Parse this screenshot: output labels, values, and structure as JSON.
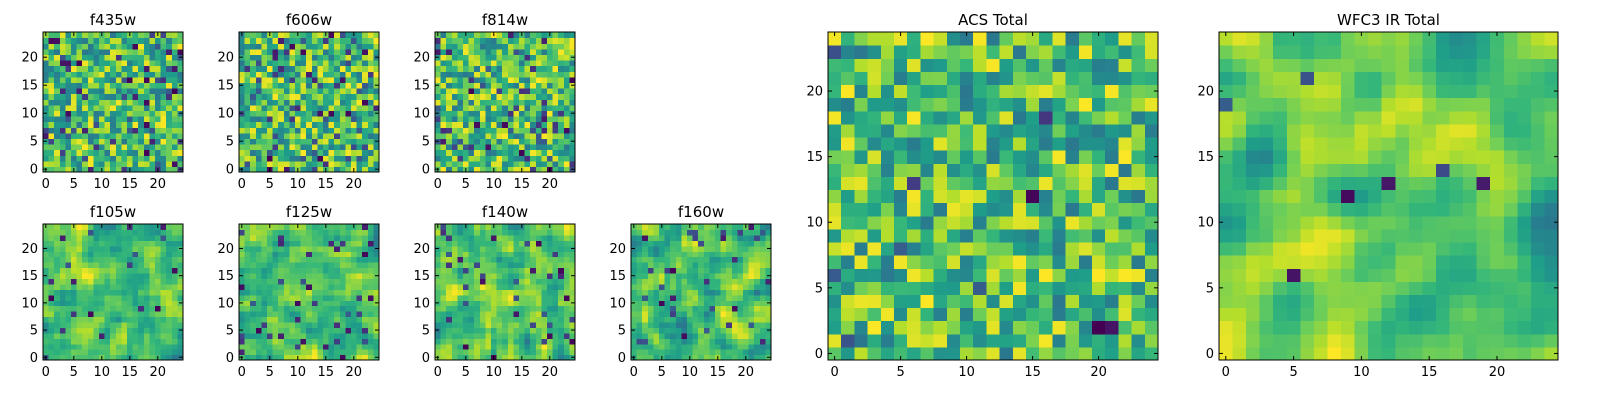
{
  "chart_data": [
    {
      "type": "heatmap",
      "title": "f435w",
      "x_ticks": [
        0,
        5,
        10,
        15,
        20
      ],
      "y_ticks": [
        0,
        5,
        10,
        15,
        20
      ],
      "xlim": [
        -0.5,
        24.5
      ],
      "ylim": [
        -0.5,
        24.5
      ],
      "grid_size": [
        25,
        25
      ],
      "colormap": "viridis",
      "seed": 11,
      "smooth": 0,
      "dark_prob": 0.1,
      "grid": false
    },
    {
      "type": "heatmap",
      "title": "f606w",
      "x_ticks": [
        0,
        5,
        10,
        15,
        20
      ],
      "y_ticks": [
        0,
        5,
        10,
        15,
        20
      ],
      "xlim": [
        -0.5,
        24.5
      ],
      "ylim": [
        -0.5,
        24.5
      ],
      "grid_size": [
        25,
        25
      ],
      "colormap": "viridis",
      "seed": 23,
      "smooth": 0,
      "dark_prob": 0.08,
      "grid": false
    },
    {
      "type": "heatmap",
      "title": "f814w",
      "x_ticks": [
        0,
        5,
        10,
        15,
        20
      ],
      "y_ticks": [
        0,
        5,
        10,
        15,
        20
      ],
      "xlim": [
        -0.5,
        24.5
      ],
      "ylim": [
        -0.5,
        24.5
      ],
      "grid_size": [
        25,
        25
      ],
      "colormap": "viridis",
      "seed": 37,
      "smooth": 0,
      "dark_prob": 0.09,
      "grid": false
    },
    {
      "type": "heatmap",
      "title": "f105w",
      "x_ticks": [
        0,
        5,
        10,
        15,
        20
      ],
      "y_ticks": [
        0,
        5,
        10,
        15,
        20
      ],
      "xlim": [
        -0.5,
        24.5
      ],
      "ylim": [
        -0.5,
        24.5
      ],
      "grid_size": [
        25,
        25
      ],
      "colormap": "viridis",
      "seed": 41,
      "smooth": 1,
      "dark_prob": 0.04,
      "grid": false
    },
    {
      "type": "heatmap",
      "title": "f125w",
      "x_ticks": [
        0,
        5,
        10,
        15,
        20
      ],
      "y_ticks": [
        0,
        5,
        10,
        15,
        20
      ],
      "xlim": [
        -0.5,
        24.5
      ],
      "ylim": [
        -0.5,
        24.5
      ],
      "grid_size": [
        25,
        25
      ],
      "colormap": "viridis",
      "seed": 53,
      "smooth": 1,
      "dark_prob": 0.05,
      "grid": false
    },
    {
      "type": "heatmap",
      "title": "f140w",
      "x_ticks": [
        0,
        5,
        10,
        15,
        20
      ],
      "y_ticks": [
        0,
        5,
        10,
        15,
        20
      ],
      "xlim": [
        -0.5,
        24.5
      ],
      "ylim": [
        -0.5,
        24.5
      ],
      "grid_size": [
        25,
        25
      ],
      "colormap": "viridis",
      "seed": 67,
      "smooth": 1,
      "dark_prob": 0.05,
      "grid": false
    },
    {
      "type": "heatmap",
      "title": "f160w",
      "x_ticks": [
        0,
        5,
        10,
        15,
        20
      ],
      "y_ticks": [
        0,
        5,
        10,
        15,
        20
      ],
      "xlim": [
        -0.5,
        24.5
      ],
      "ylim": [
        -0.5,
        24.5
      ],
      "grid_size": [
        25,
        25
      ],
      "colormap": "viridis",
      "seed": 79,
      "smooth": 1,
      "dark_prob": 0.05,
      "grid": false
    },
    {
      "type": "heatmap",
      "title": "ACS Total",
      "x_ticks": [
        0,
        5,
        10,
        15,
        20
      ],
      "y_ticks": [
        0,
        5,
        10,
        15,
        20
      ],
      "xlim": [
        -0.5,
        24.5
      ],
      "ylim": [
        -0.5,
        24.5
      ],
      "grid_size": [
        25,
        25
      ],
      "colormap": "viridis",
      "seed": 97,
      "smooth": 0,
      "dark_prob": 0.02,
      "grid": false
    },
    {
      "type": "heatmap",
      "title": "WFC3 IR Total",
      "x_ticks": [
        0,
        5,
        10,
        15,
        20
      ],
      "y_ticks": [
        0,
        5,
        10,
        15,
        20
      ],
      "xlim": [
        -0.5,
        24.5
      ],
      "ylim": [
        -0.5,
        24.5
      ],
      "grid_size": [
        25,
        25
      ],
      "colormap": "viridis",
      "seed": 113,
      "smooth": 2,
      "dark_prob": 0.01,
      "grid": false
    }
  ]
}
